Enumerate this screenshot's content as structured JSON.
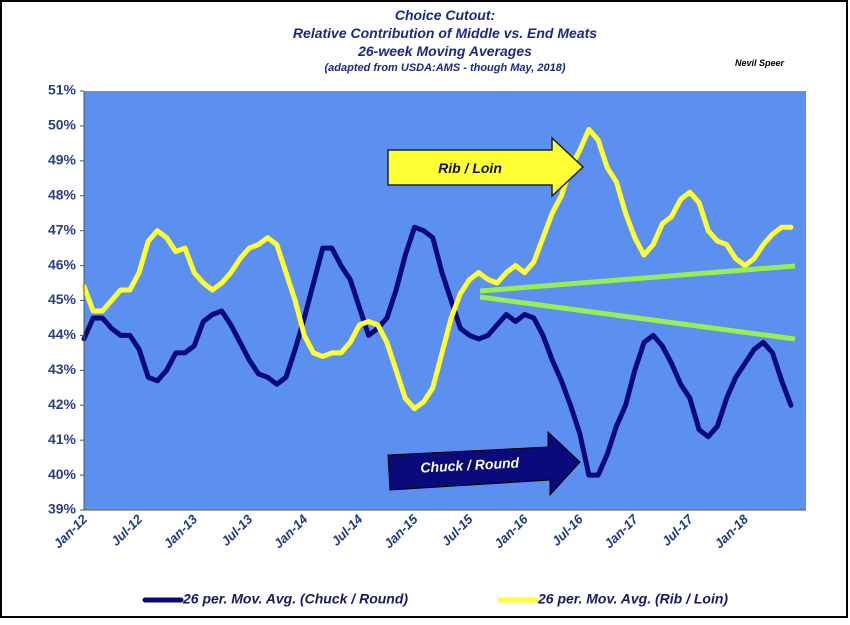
{
  "chart_data": {
    "type": "line",
    "title_lines": [
      "Choice Cutout:",
      "Relative Contribution  of Middle vs. End Meats",
      "26-week Moving Averages",
      "(adapted from USDA:AMS - though May, 2018)"
    ],
    "author": "Nevil Speer",
    "annotations": [
      "Rib / Loin",
      "Chuck / Round"
    ],
    "categories": [
      "Jan-12",
      null,
      null,
      null,
      null,
      null,
      "Jul-12",
      null,
      null,
      null,
      null,
      null,
      "Jan-13",
      null,
      null,
      null,
      null,
      null,
      "Jul-13",
      null,
      null,
      null,
      null,
      null,
      "Jan-14",
      null,
      null,
      null,
      null,
      null,
      "Jul-14",
      null,
      null,
      null,
      null,
      null,
      "Jan-15",
      null,
      null,
      null,
      null,
      null,
      "Jul-15",
      null,
      null,
      null,
      null,
      null,
      "Jan-16",
      null,
      null,
      null,
      null,
      null,
      "Jul-16",
      null,
      null,
      null,
      null,
      null,
      "Jan-17",
      null,
      null,
      null,
      null,
      null,
      "Jul-17",
      null,
      null,
      null,
      null,
      null,
      "Jan-18",
      null,
      null,
      null,
      null,
      null
    ],
    "series": [
      {
        "name": "26 per. Mov. Avg. (Chuck / Round)",
        "color": "#0a0a7a",
        "values": [
          43.9,
          44.5,
          44.5,
          44.2,
          44.0,
          44.0,
          43.6,
          42.8,
          42.7,
          43.0,
          43.5,
          43.5,
          43.7,
          44.4,
          44.6,
          44.7,
          44.3,
          43.8,
          43.3,
          42.9,
          42.8,
          42.6,
          42.8,
          43.6,
          44.5,
          45.5,
          46.5,
          46.5,
          46.0,
          45.6,
          44.8,
          44.0,
          44.2,
          44.5,
          45.3,
          46.3,
          47.1,
          47.0,
          46.8,
          45.8,
          45.0,
          44.2,
          44.0,
          43.9,
          44.0,
          44.3,
          44.6,
          44.4,
          44.6,
          44.5,
          44.0,
          43.3,
          42.7,
          42.0,
          41.2,
          40.0,
          40.0,
          40.6,
          41.4,
          42.0,
          43.0,
          43.8,
          44.0,
          43.7,
          43.2,
          42.6,
          42.2,
          41.3,
          41.1,
          41.4,
          42.2,
          42.8,
          43.2,
          43.6,
          43.8,
          43.5,
          42.7,
          42.0
        ]
      },
      {
        "name": "26 per. Mov. Avg. (Rib / Loin)",
        "color": "#ffff33",
        "values": [
          45.4,
          44.7,
          44.7,
          45.0,
          45.3,
          45.3,
          45.8,
          46.7,
          47.0,
          46.8,
          46.4,
          46.5,
          45.8,
          45.5,
          45.3,
          45.5,
          45.8,
          46.2,
          46.5,
          46.6,
          46.8,
          46.6,
          45.8,
          45.0,
          44.0,
          43.5,
          43.4,
          43.5,
          43.5,
          43.8,
          44.3,
          44.4,
          44.3,
          43.8,
          43.0,
          42.2,
          41.9,
          42.1,
          42.5,
          43.5,
          44.5,
          45.2,
          45.6,
          45.8,
          45.6,
          45.5,
          45.8,
          46.0,
          45.8,
          46.1,
          46.8,
          47.5,
          48.0,
          48.8,
          49.3,
          49.9,
          49.6,
          48.8,
          48.4,
          47.5,
          46.8,
          46.3,
          46.6,
          47.2,
          47.4,
          47.9,
          48.1,
          47.8,
          47.0,
          46.7,
          46.6,
          46.2,
          46.0,
          46.2,
          46.6,
          46.9,
          47.1,
          47.1
        ]
      }
    ],
    "ylim": [
      39,
      51
    ],
    "yticks": [
      {
        "value": 39,
        "label": "39%"
      },
      {
        "value": 40,
        "label": "40%"
      },
      {
        "value": 41,
        "label": "41%"
      },
      {
        "value": 42,
        "label": "42%"
      },
      {
        "value": 43,
        "label": "43%"
      },
      {
        "value": 44,
        "label": "44%"
      },
      {
        "value": 45,
        "label": "45%"
      },
      {
        "value": 46,
        "label": "46%"
      },
      {
        "value": 47,
        "label": "47%"
      },
      {
        "value": 48,
        "label": "48%"
      },
      {
        "value": 49,
        "label": "49%"
      },
      {
        "value": 50,
        "label": "50%"
      },
      {
        "value": 51,
        "label": "51%"
      }
    ],
    "plot_color": "#5b8ff0",
    "grid": false
  }
}
